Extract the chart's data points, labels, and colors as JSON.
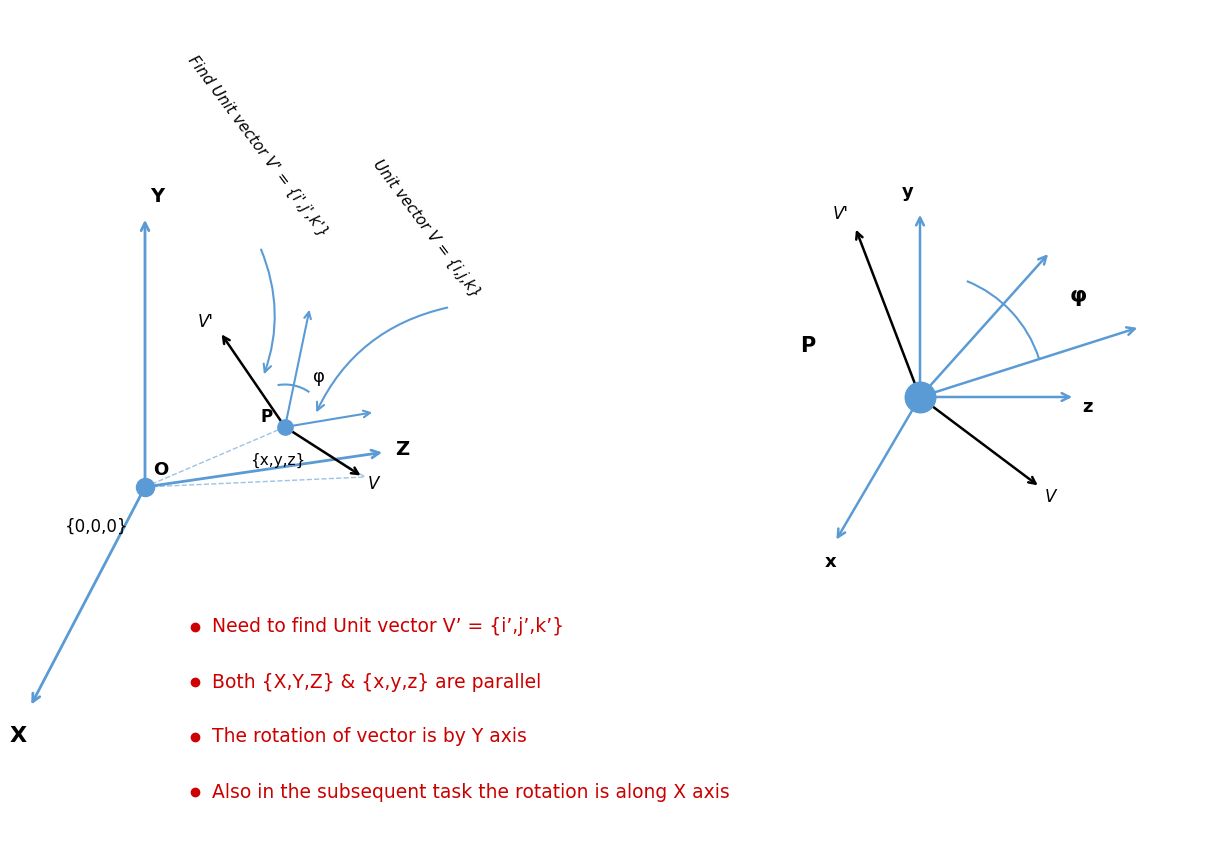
{
  "bg_color": "#ffffff",
  "light_blue": "#5B9BD5",
  "black": "#000000",
  "red": "#CC0000",
  "fig_w": 12.08,
  "fig_h": 8.57,
  "bullet_points": [
    "Need to find Unit vector V’ = {i’,j’,k’}",
    "Both {X,Y,Z} & {x,y,z} are parallel",
    "The rotation of vector is by Y axis",
    "Also in the subsequent task the rotation is along X axis"
  ]
}
